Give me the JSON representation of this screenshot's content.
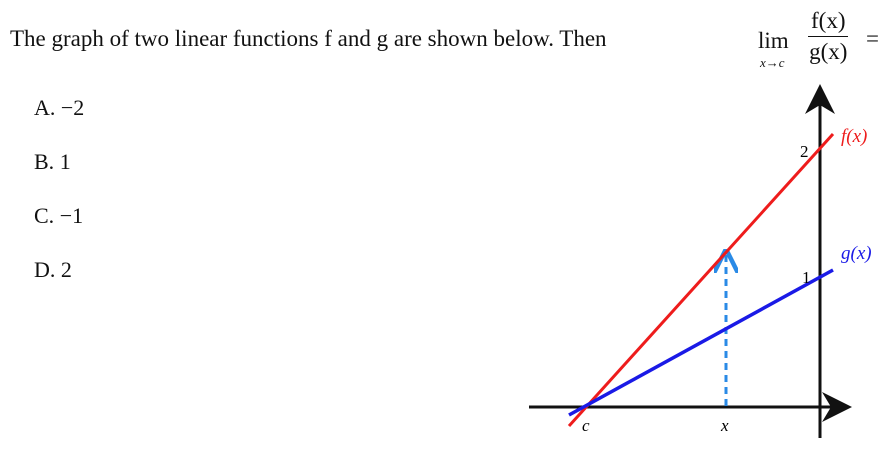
{
  "question": {
    "text": "The graph of two linear functions f and g are shown below. Then",
    "lim": "lim",
    "lim_sub": "x→c",
    "numerator": "f(x)",
    "denominator": "g(x)",
    "equals": "="
  },
  "options": [
    {
      "letter": "A.",
      "value": "−2"
    },
    {
      "letter": "B.",
      "value": "1"
    },
    {
      "letter": "C.",
      "value": "−1"
    },
    {
      "letter": "D.",
      "value": "2"
    }
  ],
  "diagram": {
    "f_label": "f(x)",
    "g_label": "g(x)",
    "tick_2": "2",
    "tick_1": "1",
    "c_label": "c",
    "x_label": "x",
    "colors": {
      "f": "#ee1c1c",
      "g": "#1a1ae6",
      "dashed": "#2a8ae6",
      "axis": "#111111"
    }
  }
}
